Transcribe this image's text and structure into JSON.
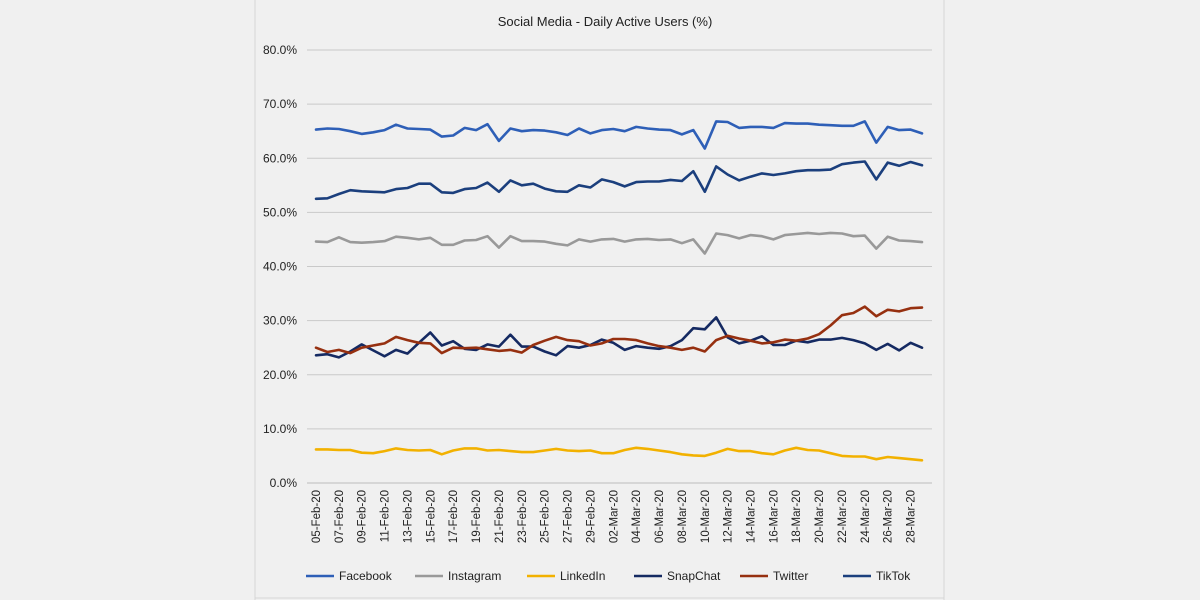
{
  "chart_data": {
    "type": "line",
    "title": "Social Media - Daily Active Users (%)",
    "xlabel": "",
    "ylabel": "",
    "ylim": [
      0,
      80
    ],
    "y_ticks": [
      "0.0%",
      "10.0%",
      "20.0%",
      "30.0%",
      "40.0%",
      "50.0%",
      "60.0%",
      "70.0%",
      "80.0%"
    ],
    "grid": true,
    "legend_position": "bottom",
    "x": [
      "05-Feb-20",
      "06-Feb-20",
      "07-Feb-20",
      "08-Feb-20",
      "09-Feb-20",
      "10-Feb-20",
      "11-Feb-20",
      "12-Feb-20",
      "13-Feb-20",
      "14-Feb-20",
      "15-Feb-20",
      "16-Feb-20",
      "17-Feb-20",
      "18-Feb-20",
      "19-Feb-20",
      "20-Feb-20",
      "21-Feb-20",
      "22-Feb-20",
      "23-Feb-20",
      "24-Feb-20",
      "25-Feb-20",
      "26-Feb-20",
      "27-Feb-20",
      "28-Feb-20",
      "29-Feb-20",
      "01-Mar-20",
      "02-Mar-20",
      "03-Mar-20",
      "04-Mar-20",
      "05-Mar-20",
      "06-Mar-20",
      "07-Mar-20",
      "08-Mar-20",
      "09-Mar-20",
      "10-Mar-20",
      "11-Mar-20",
      "12-Mar-20",
      "13-Mar-20",
      "14-Mar-20",
      "15-Mar-20",
      "16-Mar-20",
      "17-Mar-20",
      "18-Mar-20",
      "19-Mar-20",
      "20-Mar-20",
      "21-Mar-20",
      "22-Mar-20",
      "23-Mar-20",
      "24-Mar-20",
      "25-Mar-20",
      "26-Mar-20",
      "27-Mar-20",
      "28-Mar-20",
      "29-Mar-20"
    ],
    "x_tick_labels": [
      "05-Feb-20",
      "07-Feb-20",
      "09-Feb-20",
      "11-Feb-20",
      "13-Feb-20",
      "15-Feb-20",
      "17-Feb-20",
      "19-Feb-20",
      "21-Feb-20",
      "23-Feb-20",
      "25-Feb-20",
      "27-Feb-20",
      "29-Feb-20",
      "02-Mar-20",
      "04-Mar-20",
      "06-Mar-20",
      "08-Mar-20",
      "10-Mar-20",
      "12-Mar-20",
      "14-Mar-20",
      "16-Mar-20",
      "18-Mar-20",
      "20-Mar-20",
      "22-Mar-20",
      "24-Mar-20",
      "26-Mar-20",
      "28-Mar-20"
    ],
    "series": [
      {
        "name": "Facebook",
        "color": "#2e5fb7",
        "values": [
          65.3,
          65.5,
          65.4,
          65.0,
          64.5,
          64.8,
          65.2,
          66.2,
          65.5,
          65.4,
          65.3,
          64.0,
          64.2,
          65.6,
          65.2,
          66.3,
          63.2,
          65.5,
          65.0,
          65.2,
          65.1,
          64.8,
          64.3,
          65.5,
          64.6,
          65.2,
          65.4,
          65.0,
          65.8,
          65.5,
          65.3,
          65.2,
          64.4,
          65.2,
          61.8,
          66.8,
          66.7,
          65.6,
          65.8,
          65.8,
          65.6,
          66.5,
          66.4,
          66.4,
          66.2,
          66.1,
          66.0,
          66.0,
          66.8,
          62.9,
          65.8,
          65.2,
          65.3,
          64.6
        ]
      },
      {
        "name": "Instagram",
        "color": "#999999",
        "values": [
          44.6,
          44.5,
          45.4,
          44.5,
          44.4,
          44.5,
          44.7,
          45.5,
          45.3,
          45.0,
          45.3,
          44.0,
          44.0,
          44.8,
          44.9,
          45.6,
          43.5,
          45.6,
          44.7,
          44.7,
          44.6,
          44.2,
          43.9,
          45.0,
          44.6,
          45.0,
          45.1,
          44.6,
          45.0,
          45.1,
          44.9,
          45.0,
          44.3,
          45.0,
          42.4,
          46.1,
          45.8,
          45.2,
          45.8,
          45.6,
          45.0,
          45.8,
          46.0,
          46.2,
          46.0,
          46.2,
          46.1,
          45.6,
          45.7,
          43.3,
          45.5,
          44.8,
          44.7,
          44.5
        ]
      },
      {
        "name": "LinkedIn",
        "color": "#f2b100",
        "values": [
          6.2,
          6.2,
          6.1,
          6.1,
          5.6,
          5.5,
          5.9,
          6.4,
          6.1,
          6.0,
          6.1,
          5.3,
          6.0,
          6.4,
          6.4,
          6.0,
          6.1,
          5.9,
          5.7,
          5.7,
          6.0,
          6.3,
          6.0,
          5.9,
          6.0,
          5.5,
          5.5,
          6.1,
          6.5,
          6.3,
          6.0,
          5.7,
          5.3,
          5.1,
          5.0,
          5.6,
          6.3,
          5.9,
          5.9,
          5.5,
          5.3,
          6.0,
          6.5,
          6.1,
          6.0,
          5.5,
          5.0,
          4.9,
          4.9,
          4.4,
          4.8,
          4.6,
          4.4,
          4.2
        ]
      },
      {
        "name": "SnapChat",
        "color": "#152a62",
        "values": [
          23.6,
          23.8,
          23.2,
          24.3,
          25.6,
          24.5,
          23.4,
          24.6,
          23.9,
          25.9,
          27.8,
          25.4,
          26.2,
          24.8,
          24.6,
          25.6,
          25.2,
          27.4,
          25.2,
          25.2,
          24.3,
          23.6,
          25.3,
          25.0,
          25.5,
          26.5,
          25.9,
          24.6,
          25.3,
          25.0,
          24.8,
          25.3,
          26.4,
          28.6,
          28.4,
          30.6,
          26.9,
          25.8,
          26.3,
          27.1,
          25.5,
          25.5,
          26.3,
          26.0,
          26.5,
          26.5,
          26.8,
          26.4,
          25.8,
          24.6,
          25.7,
          24.5,
          25.9,
          25.0
        ]
      },
      {
        "name": "Twitter",
        "color": "#963010",
        "values": [
          25.0,
          24.2,
          24.6,
          24.0,
          25.0,
          25.4,
          25.8,
          27.0,
          26.4,
          25.9,
          25.8,
          24.0,
          25.0,
          24.9,
          25.0,
          24.7,
          24.4,
          24.6,
          24.1,
          25.5,
          26.3,
          27.0,
          26.4,
          26.2,
          25.4,
          25.8,
          26.6,
          26.6,
          26.4,
          25.8,
          25.3,
          25.0,
          24.6,
          25.0,
          24.3,
          26.4,
          27.2,
          26.7,
          26.3,
          25.8,
          26.0,
          26.5,
          26.3,
          26.7,
          27.5,
          29.1,
          31.0,
          31.4,
          32.6,
          30.8,
          32.0,
          31.7,
          32.3,
          32.4
        ]
      },
      {
        "name": "TikTok",
        "color": "#1b3f7d",
        "values": [
          52.5,
          52.6,
          53.4,
          54.1,
          53.9,
          53.8,
          53.7,
          54.3,
          54.5,
          55.3,
          55.3,
          53.7,
          53.6,
          54.3,
          54.5,
          55.5,
          53.8,
          55.9,
          55.0,
          55.3,
          54.4,
          53.9,
          53.8,
          55.0,
          54.6,
          56.1,
          55.6,
          54.8,
          55.6,
          55.7,
          55.7,
          56.0,
          55.8,
          57.6,
          53.8,
          58.5,
          57.0,
          55.9,
          56.6,
          57.2,
          56.9,
          57.2,
          57.6,
          57.8,
          57.8,
          57.9,
          58.9,
          59.2,
          59.4,
          56.1,
          59.2,
          58.6,
          59.3,
          58.7
        ]
      }
    ]
  }
}
